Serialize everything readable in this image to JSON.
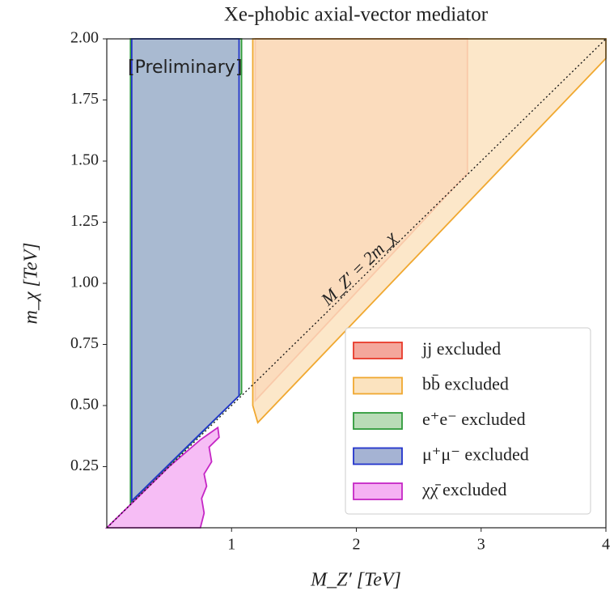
{
  "chart_data": {
    "type": "region",
    "title": "Xe-phobic axial-vector mediator",
    "x_label": "M_Z′ [TeV]",
    "y_label": "m_χ [TeV]",
    "annotation": "[Preliminary]",
    "annotation_color": "#b22222",
    "xlim": [
      0,
      4
    ],
    "ylim": [
      0,
      2
    ],
    "xticks": [
      1,
      2,
      3,
      4
    ],
    "yticks": [
      0.25,
      {
        "value": 0.5,
        "label": "0.50"
      },
      0.75,
      {
        "value": 1,
        "label": "1.00"
      },
      1.25,
      {
        "value": 1.5,
        "label": "1.50"
      },
      1.75,
      {
        "value": 2,
        "label": "2.00"
      }
    ],
    "legend": "lower right",
    "reference_line": {
      "label": "M_Z′ = 2m_χ",
      "x": [
        0,
        4
      ],
      "y": [
        0,
        2
      ]
    },
    "series": [
      {
        "name": "jj excluded",
        "color": "#e8392a",
        "fill": "#f4a79c",
        "x": [
          1.19,
          2.89,
          2.89,
          1.19
        ],
        "y": [
          2,
          2,
          1.45,
          0.52
        ]
      },
      {
        "name": "bb̄ excluded",
        "color": "#f0a830",
        "fill": "#fbe3bf",
        "x": [
          1.17,
          4,
          4,
          1.21,
          1.17
        ],
        "y": [
          2,
          2,
          1.92,
          0.43,
          0.5
        ]
      },
      {
        "name": "e⁺e⁻ excluded",
        "color": "#2e9a3a",
        "fill": "#b9dcb7",
        "x": [
          0.19,
          1.08,
          1.08,
          0.19
        ],
        "y": [
          2,
          2,
          0.55,
          0.1
        ]
      },
      {
        "name": "μ⁺μ⁻ excluded",
        "color": "#2233cc",
        "fill": "#a5b3d3",
        "x": [
          0.2,
          1.06,
          1.06,
          0.2
        ],
        "y": [
          2,
          2,
          0.54,
          0.11
        ]
      },
      {
        "name": "χχ̄ excluded",
        "color": "#c526c5",
        "fill": "#f5b1f3",
        "x": [
          0,
          0.2,
          0.5,
          0.75,
          0.89,
          0.9,
          0.82,
          0.84,
          0.78,
          0.8,
          0.76,
          0.78,
          0.75
        ],
        "y": [
          0,
          0.1,
          0.25,
          0.36,
          0.41,
          0.37,
          0.33,
          0.27,
          0.22,
          0.17,
          0.12,
          0.06,
          0
        ]
      }
    ]
  }
}
